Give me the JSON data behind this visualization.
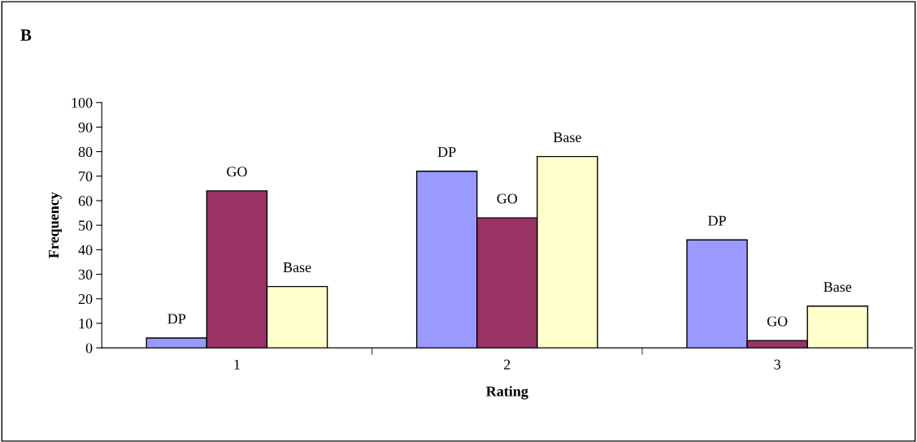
{
  "chart_data": {
    "type": "bar",
    "title": "B",
    "xlabel": "Rating",
    "ylabel": "Frequency",
    "categories": [
      "1",
      "2",
      "3"
    ],
    "series": [
      {
        "name": "DP",
        "color": "#9999ff",
        "values": [
          4,
          72,
          44
        ]
      },
      {
        "name": "GO",
        "color": "#993366",
        "values": [
          64,
          53,
          3
        ]
      },
      {
        "name": "Base",
        "color": "#ffffcc",
        "values": [
          25,
          78,
          17
        ]
      }
    ],
    "ylim": [
      0,
      100
    ],
    "yticks": [
      0,
      10,
      20,
      30,
      40,
      50,
      60,
      70,
      80,
      90,
      100
    ],
    "grid": false,
    "legend": false
  }
}
